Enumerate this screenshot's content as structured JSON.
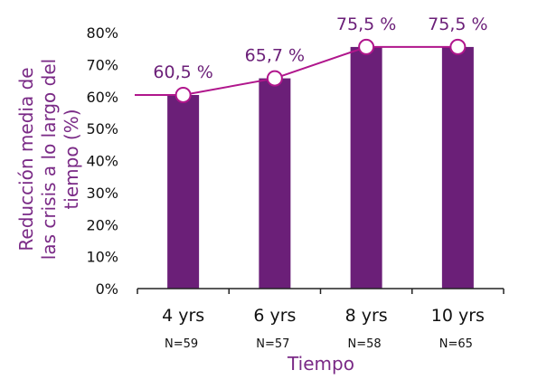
{
  "chart_data": {
    "type": "bar",
    "categories": [
      "4 yrs",
      "6 yrs",
      "8 yrs",
      "10 yrs"
    ],
    "sample_sizes": [
      "N=59",
      "N=57",
      "N=58",
      "N=65"
    ],
    "values": [
      60.5,
      65.7,
      75.5,
      75.5
    ],
    "data_labels": [
      "60,5 %",
      "65,7 %",
      "75,5 %",
      "75,5 %"
    ],
    "overlay_line": true,
    "xlabel": "Tiempo",
    "ylabel": "Reducción media de las crisis a lo largo del tiempo (%)",
    "ylabel_lines": [
      "Reducción media de",
      "las crisis a lo largo del",
      "tiempo (%)"
    ],
    "ylim": [
      0,
      80
    ],
    "yticks": [
      "0%",
      "10%",
      "20%",
      "30%",
      "40%",
      "50%",
      "60%",
      "70%",
      "80%"
    ],
    "grid": false,
    "colors": {
      "bar": "#6b1f78",
      "line": "#b0168c",
      "label": "#6b1f78",
      "axis_title": "#7a2a86",
      "axis": "#222222"
    }
  }
}
